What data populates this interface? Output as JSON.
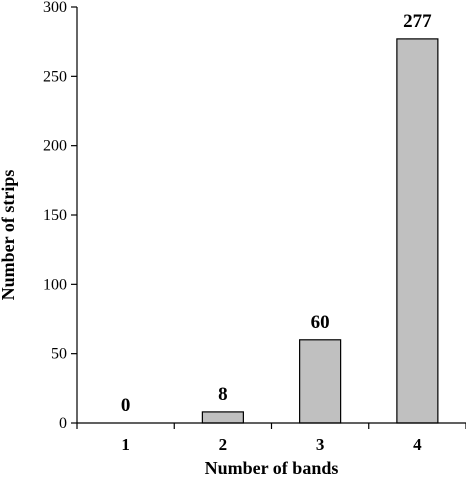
{
  "chart_data": {
    "type": "bar",
    "categories": [
      "1",
      "2",
      "3",
      "4"
    ],
    "values": [
      0,
      8,
      60,
      277
    ],
    "data_labels": [
      "0",
      "8",
      "60",
      "277"
    ],
    "xlabel": "Number of bands",
    "ylabel": "Number of strips",
    "ylim": [
      0,
      300
    ],
    "yticks": [
      "0",
      "50",
      "100",
      "150",
      "200",
      "250",
      "300"
    ],
    "grid": false,
    "legend": "none",
    "bar_color": "#c0c0c0",
    "bar_edge_color": "#000000"
  }
}
